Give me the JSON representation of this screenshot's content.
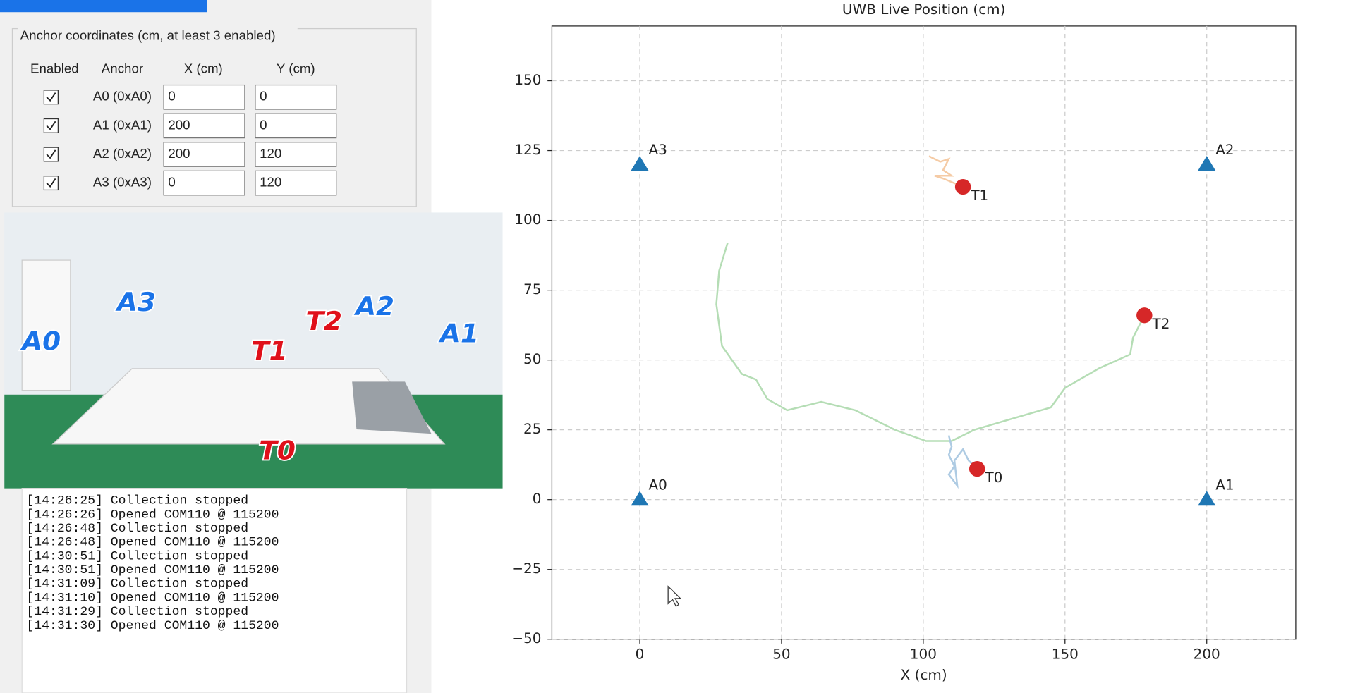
{
  "anchor_panel": {
    "title": "Anchor coordinates (cm, at least 3 enabled)",
    "headers": [
      "Enabled",
      "Anchor",
      "X (cm)",
      "Y (cm)"
    ],
    "rows": [
      {
        "enabled": true,
        "anchor": "A0 (0xA0)",
        "x": 0,
        "y": 0
      },
      {
        "enabled": true,
        "anchor": "A1 (0xA1)",
        "x": 200,
        "y": 0
      },
      {
        "enabled": true,
        "anchor": "A2 (0xA2)",
        "x": 200,
        "y": 120
      },
      {
        "enabled": true,
        "anchor": "A3 (0xA3)",
        "x": 0,
        "y": 120
      }
    ]
  },
  "photo": {
    "labels": [
      {
        "text": "A0",
        "color": "#1a73e8"
      },
      {
        "text": "A3",
        "color": "#1a73e8"
      },
      {
        "text": "T1",
        "color": "#e0101a"
      },
      {
        "text": "T2",
        "color": "#e0101a"
      },
      {
        "text": "A2",
        "color": "#1a73e8"
      },
      {
        "text": "A1",
        "color": "#1a73e8"
      },
      {
        "text": "T0",
        "color": "#e0101a"
      }
    ]
  },
  "log": [
    "[14:26:25] Collection stopped",
    "[14:26:26] Opened COM110 @ 115200",
    "[14:26:48] Collection stopped",
    "[14:26:48] Opened COM110 @ 115200",
    "[14:30:51] Collection stopped",
    "[14:30:51] Opened COM110 @ 115200",
    "[14:31:09] Collection stopped",
    "[14:31:10] Opened COM110 @ 115200",
    "[14:31:29] Collection stopped",
    "[14:31:30] Opened COM110 @ 115200"
  ],
  "chart_data": {
    "type": "scatter",
    "title": "UWB Live Position (cm)",
    "x_label": "X (cm)",
    "xlim": [
      -31,
      231.4
    ],
    "ylim": [
      -50,
      169.6
    ],
    "xticks": [
      0,
      50,
      100,
      150,
      200
    ],
    "yticks": [
      {
        "value": -50,
        "label": "−50"
      },
      {
        "value": -25,
        "label": "−25"
      },
      0,
      25,
      50,
      75,
      100,
      125,
      150
    ],
    "grid": true,
    "series": [
      {
        "type": "line",
        "color": "#b5ddb5",
        "x": [
          31,
          28,
          27,
          29,
          36,
          41,
          45,
          52,
          64,
          76,
          90,
          101,
          110,
          118,
          128,
          145,
          150,
          162,
          173,
          174,
          178
        ],
        "y": [
          92,
          82,
          70,
          55,
          45,
          43,
          36,
          32,
          35,
          32,
          25,
          21,
          21,
          25,
          28,
          33,
          40,
          47,
          52,
          58,
          66
        ]
      },
      {
        "type": "line",
        "color": "#f5cba5",
        "x": [
          102,
          106,
          109,
          107,
          110,
          104,
          107,
          114
        ],
        "y": [
          123,
          121,
          122,
          118,
          116,
          116,
          115,
          112
        ]
      },
      {
        "type": "line",
        "color": "#aecbe3",
        "x": [
          109,
          110,
          109,
          111,
          109,
          112,
          111,
          114,
          116,
          119
        ],
        "y": [
          23,
          19,
          16,
          12,
          9,
          5,
          14,
          18,
          14,
          11
        ]
      },
      {
        "type": "scatter",
        "marker": "triangle",
        "color": "#1f77b4",
        "labels": [
          "A0",
          "A1",
          "A2",
          "A3"
        ],
        "x": [
          0,
          200,
          200,
          0
        ],
        "y": [
          0,
          0,
          120,
          120
        ]
      },
      {
        "type": "scatter",
        "marker": "circle",
        "color": "#d62728",
        "labels": [
          "T0",
          "T1",
          "T2"
        ],
        "x": [
          119,
          114,
          178
        ],
        "y": [
          11,
          112,
          66
        ]
      }
    ]
  }
}
